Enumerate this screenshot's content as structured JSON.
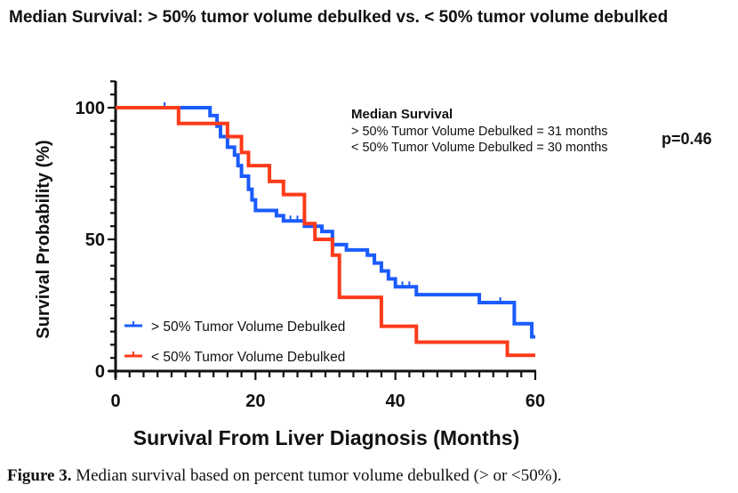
{
  "header": {
    "title": "Median Survival: > 50% tumor volume debulked vs. < 50% tumor volume debulked"
  },
  "caption": {
    "lead": "Figure 3.",
    "text": " Median survival based on percent tumor volume debulked (> or <50%)."
  },
  "chart_data": {
    "type": "line",
    "subtype": "kaplan-meier-step",
    "title": "Median Survival: > 50% tumor volume debulked vs. < 50% tumor volume debulked",
    "xlabel": "Survival From Liver Diagnosis (Months)",
    "ylabel": "Survival Probability (%)",
    "xlim": [
      0,
      60
    ],
    "ylim": [
      0,
      100
    ],
    "xticks": [
      0,
      20,
      40,
      60
    ],
    "yticks": [
      0,
      50,
      100
    ],
    "x_minor_step": 2,
    "y_minor_step": 5,
    "grid": false,
    "legend_position": "bottom-left",
    "annotation": {
      "heading": "Median Survival",
      "lines": [
        "> 50% Tumor Volume Debulked = 31 months",
        "< 50% Tumor Volume Debulked = 30 months"
      ],
      "pvalue": "p=0.46"
    },
    "series": [
      {
        "name": "> 50% Tumor Volume Debulked",
        "color": "#1a5cff",
        "steps": [
          [
            0,
            100
          ],
          [
            13.5,
            97
          ],
          [
            14.5,
            93
          ],
          [
            15,
            89
          ],
          [
            16,
            85
          ],
          [
            17,
            82
          ],
          [
            17.5,
            78
          ],
          [
            18,
            74
          ],
          [
            19,
            69
          ],
          [
            19.5,
            65
          ],
          [
            20,
            61
          ],
          [
            23,
            59
          ],
          [
            24,
            57
          ],
          [
            27,
            55
          ],
          [
            29.5,
            53
          ],
          [
            31,
            48
          ],
          [
            33,
            46
          ],
          [
            36,
            44
          ],
          [
            37,
            41
          ],
          [
            38,
            38
          ],
          [
            39,
            35
          ],
          [
            40,
            32
          ],
          [
            43,
            29
          ],
          [
            52,
            26
          ],
          [
            57,
            18
          ],
          [
            59.5,
            13
          ],
          [
            60,
            13
          ]
        ],
        "censored": [
          7,
          25,
          26,
          36,
          38,
          41,
          42,
          43,
          55
        ]
      },
      {
        "name": "< 50% Tumor Volume Debulked",
        "color": "#ff3b1a",
        "steps": [
          [
            0,
            100
          ],
          [
            9,
            94
          ],
          [
            16,
            89
          ],
          [
            18,
            83
          ],
          [
            19,
            78
          ],
          [
            22,
            72
          ],
          [
            24,
            67
          ],
          [
            27,
            56
          ],
          [
            28.5,
            50
          ],
          [
            31,
            44
          ],
          [
            32,
            28
          ],
          [
            38,
            17
          ],
          [
            43,
            11
          ],
          [
            56,
            6
          ],
          [
            60,
            6
          ]
        ],
        "censored": []
      }
    ]
  }
}
